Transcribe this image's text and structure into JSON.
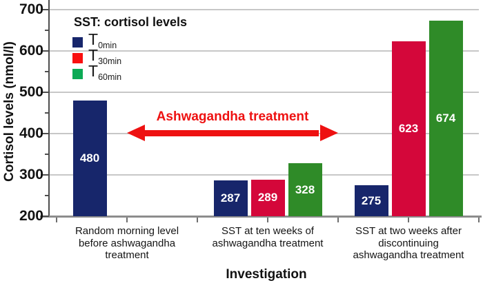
{
  "chart_data": {
    "type": "bar",
    "title": "SST: cortisol levels",
    "xlabel": "Investigation",
    "ylabel": "Cortisol levels (nmol/l)",
    "ylim": [
      200,
      700
    ],
    "y_major_ticks": [
      200,
      300,
      400,
      500,
      600,
      700
    ],
    "y_minor_step": 50,
    "grid": true,
    "legend_position": "top-left",
    "categories": [
      "Random morning level\nbefore ashwagandha\ntreatment",
      "SST at ten weeks of\nashwagandha treatment",
      "SST at two weeks after\ndiscontinuing\nashwagandha treatment"
    ],
    "series": [
      {
        "name": "T0min",
        "label_main": "T",
        "label_sub": "0min",
        "bar_color": "#17266b",
        "legend_color": "#17266b",
        "values": [
          480,
          287,
          275
        ]
      },
      {
        "name": "T30min",
        "label_main": "T",
        "label_sub": "30min",
        "bar_color": "#d4073a",
        "legend_color": "#f90f0f",
        "values": [
          null,
          289,
          623
        ]
      },
      {
        "name": "T60min",
        "label_main": "T",
        "label_sub": "60min",
        "bar_color": "#2f8b28",
        "legend_color": "#0caa55",
        "values": [
          null,
          328,
          674
        ]
      }
    ],
    "annotation": {
      "text": "Ashwagandha treatment",
      "color": "#ee1111"
    }
  }
}
